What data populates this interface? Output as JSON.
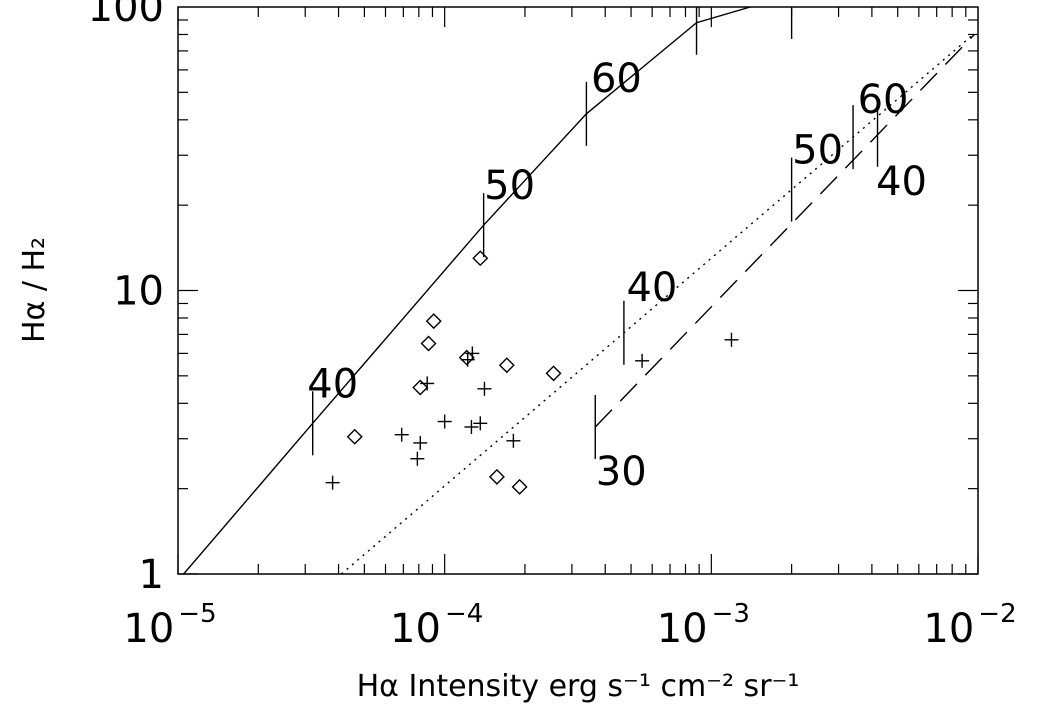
{
  "chart_data": {
    "type": "line",
    "xlabel": "Hα Intensity erg s⁻¹ cm⁻² sr⁻¹",
    "ylabel": "Hα / H₂",
    "x_scale": "log",
    "y_scale": "log",
    "xlim": [
      1e-05,
      0.01
    ],
    "ylim": [
      1,
      100
    ],
    "x_ticks": [
      {
        "value": 1e-05,
        "base": "10",
        "exp": "−5"
      },
      {
        "value": 0.0001,
        "base": "10",
        "exp": "−4"
      },
      {
        "value": 0.001,
        "base": "10",
        "exp": "−3"
      },
      {
        "value": 0.01,
        "base": "10",
        "exp": "−2"
      }
    ],
    "y_ticks": [
      {
        "value": 1,
        "label": "1"
      },
      {
        "value": 10,
        "label": "10"
      },
      {
        "value": 100,
        "label": "100"
      }
    ],
    "grid": false,
    "legend": "none",
    "series": [
      {
        "style": "solid",
        "x": [
          1.05e-05,
          3.2e-05,
          0.00014,
          0.00034,
          0.00088,
          0.0014
        ],
        "y": [
          1,
          3.4,
          17,
          42,
          88,
          100
        ],
        "markers": [
          {
            "x": 3.2e-05,
            "label": "40"
          },
          {
            "x": 0.00014,
            "label": "50"
          },
          {
            "x": 0.00034,
            "label": "60"
          },
          {
            "x": 0.00088,
            "label": ""
          },
          {
            "x": 0.002,
            "label": ""
          }
        ]
      },
      {
        "style": "dotted",
        "x": [
          4.1e-05,
          0.0096
        ],
        "y": [
          1,
          80
        ],
        "markers": [
          {
            "x": 0.00047,
            "label": "40"
          },
          {
            "x": 0.002,
            "label": "50"
          },
          {
            "x": 0.0034,
            "label": "60"
          }
        ]
      },
      {
        "style": "dashed",
        "x": [
          0.000367,
          0.0097
        ],
        "y": [
          3.3,
          80
        ],
        "markers": [
          {
            "x": 0.000367,
            "label": "30"
          },
          {
            "x": 0.0042,
            "label": "40"
          }
        ]
      }
    ],
    "points_plus": [
      [
        3.8e-05,
        2.1
      ],
      [
        6.9e-05,
        3.1
      ],
      [
        7.9e-05,
        2.55
      ],
      [
        8.1e-05,
        2.9
      ],
      [
        8.6e-05,
        4.7
      ],
      [
        0.0001,
        3.45
      ],
      [
        0.000122,
        5.7
      ],
      [
        0.000127,
        6.0
      ],
      [
        0.000126,
        3.3
      ],
      [
        0.000136,
        3.4
      ],
      [
        0.000141,
        4.5
      ],
      [
        0.000181,
        2.95
      ],
      [
        0.00055,
        5.65
      ],
      [
        0.00119,
        6.7
      ]
    ],
    "points_diamond": [
      [
        4.6e-05,
        3.05
      ],
      [
        8.1e-05,
        4.55
      ],
      [
        8.7e-05,
        6.5
      ],
      [
        9.1e-05,
        7.8
      ],
      [
        0.000121,
        5.8
      ],
      [
        0.000136,
        13
      ],
      [
        0.000157,
        2.2
      ],
      [
        0.000171,
        5.45
      ],
      [
        0.000191,
        2.03
      ],
      [
        0.000256,
        5.1
      ]
    ]
  }
}
